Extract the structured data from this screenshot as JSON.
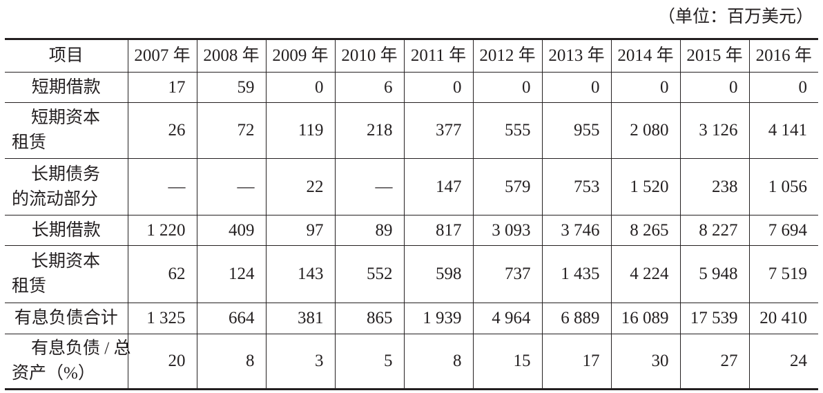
{
  "unit_note": "（单位：百万美元）",
  "table": {
    "header": [
      "项目",
      "2007 年",
      "2008 年",
      "2009 年",
      "2010 年",
      "2011 年",
      "2012 年",
      "2013 年",
      "2014 年",
      "2015 年",
      "2016 年"
    ],
    "rows": [
      {
        "label": [
          "短期借款"
        ],
        "cells": [
          "17",
          "59",
          "0",
          "6",
          "0",
          "0",
          "0",
          "0",
          "0",
          "0"
        ]
      },
      {
        "label": [
          "短期资本",
          "租赁"
        ],
        "cells": [
          "26",
          "72",
          "119",
          "218",
          "377",
          "555",
          "955",
          "2 080",
          "3 126",
          "4 141"
        ]
      },
      {
        "label": [
          "长期债务",
          "的流动部分"
        ],
        "cells": [
          "—",
          "—",
          "22",
          "—",
          "147",
          "579",
          "753",
          "1 520",
          "238",
          "1 056"
        ]
      },
      {
        "label": [
          "长期借款"
        ],
        "cells": [
          "1 220",
          "409",
          "97",
          "89",
          "817",
          "3 093",
          "3 746",
          "8 265",
          "8 227",
          "7 694"
        ]
      },
      {
        "label": [
          "长期资本",
          "租赁"
        ],
        "cells": [
          "62",
          "124",
          "143",
          "552",
          "598",
          "737",
          "1 435",
          "4 224",
          "5 948",
          "7 519"
        ]
      },
      {
        "label": [
          "有息负债合计"
        ],
        "cells": [
          "1 325",
          "664",
          "381",
          "865",
          "1 939",
          "4 964",
          "6 889",
          "16 089",
          "17 539",
          "20 410"
        ]
      },
      {
        "label": [
          "有息负债 / 总",
          "资产（%）"
        ],
        "cells": [
          "20",
          "8",
          "3",
          "5",
          "8",
          "15",
          "17",
          "30",
          "27",
          "24"
        ]
      }
    ]
  }
}
